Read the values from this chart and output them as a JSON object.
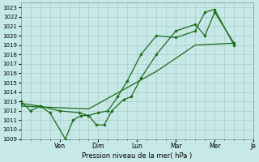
{
  "xlabel": "Pression niveau de la mer( hPa )",
  "ylim": [
    1009,
    1023.5
  ],
  "yticks": [
    1009,
    1010,
    1011,
    1012,
    1013,
    1014,
    1015,
    1016,
    1017,
    1018,
    1019,
    1020,
    1021,
    1022,
    1023
  ],
  "background_color": "#c6e8e6",
  "grid_color": "#a8ccca",
  "line_color": "#1a6b1a",
  "xlim": [
    0,
    12
  ],
  "x_tick_positions": [
    2,
    4,
    6,
    8,
    10,
    12
  ],
  "x_tick_labels": [
    "Ven",
    "Dim",
    "Lun",
    "Mar",
    "Mer",
    "Je"
  ],
  "vlines": [
    2,
    4,
    6,
    8,
    10,
    12
  ],
  "series1": {
    "x": [
      0.0,
      0.5,
      1.0,
      1.5,
      2.3,
      2.7,
      3.1,
      3.5,
      3.9,
      4.3,
      4.7,
      5.3,
      5.7,
      6.2,
      7.0,
      8.0,
      9.0,
      9.5,
      10.0,
      11.0
    ],
    "y": [
      1013.0,
      1012.0,
      1012.5,
      1011.8,
      1009.0,
      1011.0,
      1011.5,
      1011.5,
      1010.5,
      1010.5,
      1012.0,
      1013.2,
      1013.5,
      1015.5,
      1018.0,
      1020.5,
      1021.2,
      1020.0,
      1022.5,
      1019.2
    ]
  },
  "series2": {
    "x": [
      0.0,
      1.0,
      2.0,
      3.0,
      3.5,
      4.0,
      4.5,
      5.0,
      5.5,
      6.2,
      7.0,
      8.0,
      9.0,
      9.5,
      10.0,
      11.0
    ],
    "y": [
      1012.8,
      1012.5,
      1012.0,
      1011.8,
      1011.5,
      1011.8,
      1012.0,
      1013.5,
      1015.2,
      1018.0,
      1020.0,
      1019.8,
      1020.5,
      1022.5,
      1022.8,
      1019.0
    ]
  },
  "series3": {
    "x": [
      0.0,
      3.5,
      7.0,
      9.0,
      11.0
    ],
    "y": [
      1012.5,
      1012.2,
      1016.2,
      1019.0,
      1019.2
    ]
  }
}
